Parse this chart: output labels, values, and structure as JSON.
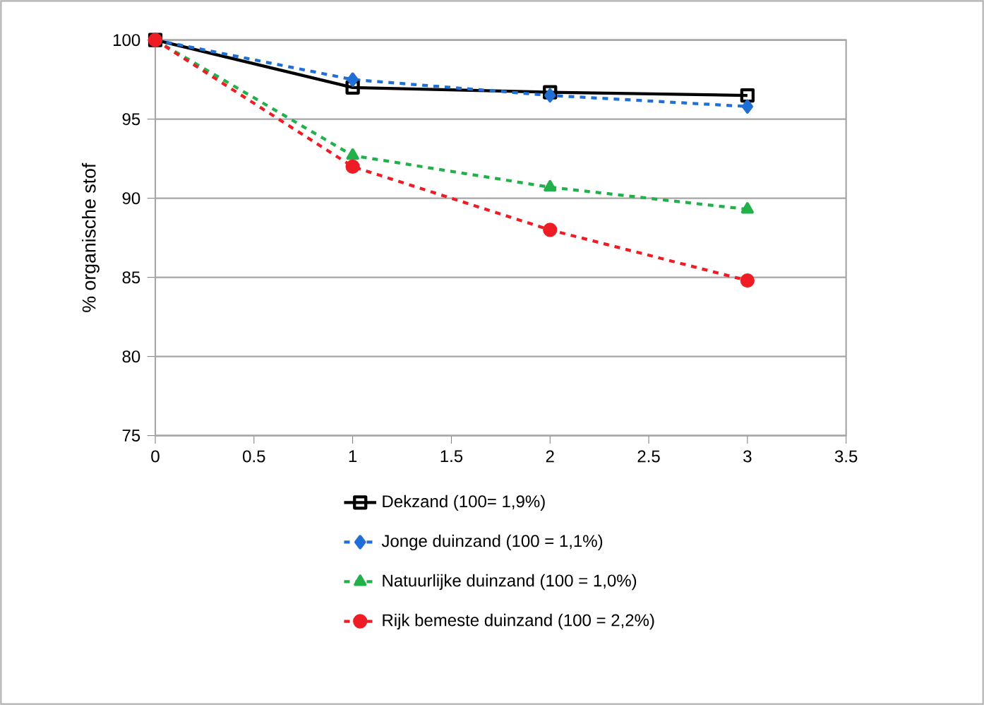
{
  "chart_data": {
    "type": "line",
    "ylabel": "% organische stof",
    "x": [
      0,
      1,
      2,
      3
    ],
    "series": [
      {
        "name": "Dekzand (100= 1,9%)",
        "color": "#000000",
        "values": [
          100,
          97,
          96.7,
          96.5
        ],
        "marker": "square",
        "line_style": "solid"
      },
      {
        "name": "Jonge duinzand (100 = 1,1%)",
        "color": "#1f6fd6",
        "values": [
          100,
          97.5,
          96.5,
          95.8
        ],
        "marker": "diamond",
        "line_style": "dashed"
      },
      {
        "name": "Natuurlijke duinzand (100 = 1,0%)",
        "color": "#22b04a",
        "values": [
          100,
          92.7,
          90.7,
          89.3
        ],
        "marker": "triangle",
        "line_style": "dashed"
      },
      {
        "name": "Rijk bemeste duinzand (100 = 2,2%)",
        "color": "#ee1c25",
        "values": [
          100,
          92,
          88,
          84.8
        ],
        "marker": "circle",
        "line_style": "dashed"
      }
    ],
    "xlim": [
      0,
      3.5
    ],
    "xticks": [
      0,
      0.5,
      1,
      1.5,
      2,
      2.5,
      3,
      3.5
    ],
    "ylim": [
      75,
      100
    ],
    "yticks": [
      75,
      80,
      85,
      90,
      95,
      100
    ],
    "grid": "y",
    "legend": "bottom"
  }
}
